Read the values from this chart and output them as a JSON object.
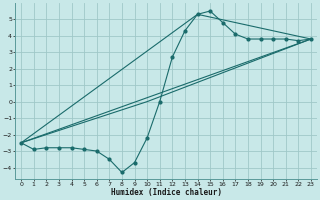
{
  "xlabel": "Humidex (Indice chaleur)",
  "ylabel": "",
  "xlim": [
    -0.5,
    23.5
  ],
  "ylim": [
    -4.7,
    6.0
  ],
  "yticks": [
    -4,
    -3,
    -2,
    -1,
    0,
    1,
    2,
    3,
    4,
    5
  ],
  "xticks": [
    0,
    1,
    2,
    3,
    4,
    5,
    6,
    7,
    8,
    9,
    10,
    11,
    12,
    13,
    14,
    15,
    16,
    17,
    18,
    19,
    20,
    21,
    22,
    23
  ],
  "bg_color": "#c8e8e8",
  "line_color": "#1a6b6b",
  "grid_color": "#a0c8c8",
  "line1_x": [
    0,
    1,
    2,
    3,
    4,
    5,
    6,
    7,
    8,
    9,
    10,
    11,
    12,
    13,
    14,
    15,
    16,
    17,
    18,
    19,
    20,
    21,
    22,
    23
  ],
  "line1_y": [
    -2.5,
    -2.9,
    -2.8,
    -2.8,
    -2.8,
    -2.9,
    -3.0,
    -3.5,
    -4.3,
    -3.7,
    -2.2,
    0.0,
    2.7,
    4.3,
    5.3,
    5.5,
    4.8,
    4.1,
    3.8,
    3.8,
    3.8,
    3.8,
    3.7,
    3.8
  ],
  "line2_x": [
    0,
    23
  ],
  "line2_y": [
    -2.5,
    3.8
  ],
  "line3_x": [
    0,
    10,
    23
  ],
  "line3_y": [
    -2.5,
    0.0,
    3.8
  ],
  "line4_x": [
    0,
    14,
    23
  ],
  "line4_y": [
    -2.5,
    5.3,
    3.8
  ]
}
